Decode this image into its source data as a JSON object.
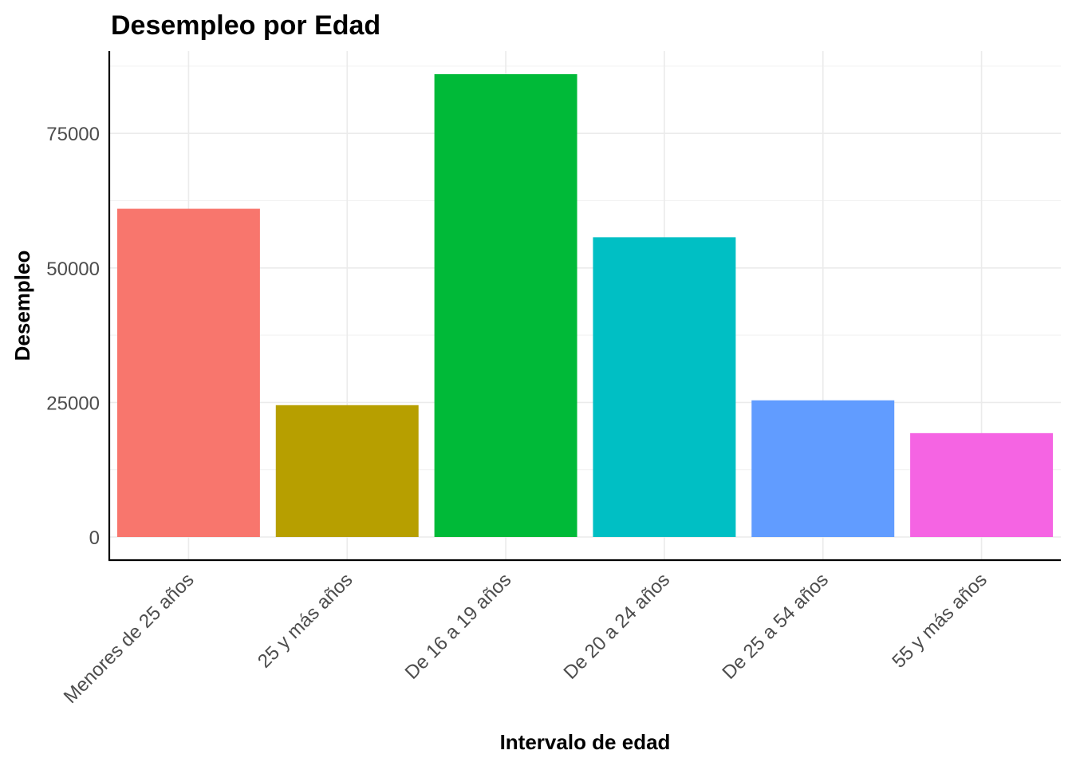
{
  "chart_data": {
    "type": "bar",
    "title": "Desempleo por Edad",
    "xlabel": "Intervalo de edad",
    "ylabel": "Desempleo",
    "categories": [
      "Menores de 25 años",
      "25 y más años",
      "De 16 a 19 años",
      "De 20 a 24 años",
      "De 25 a 54 años",
      "55 y más años"
    ],
    "values": [
      61000,
      24500,
      86000,
      55700,
      25400,
      19300
    ],
    "colors": [
      "#F8766D",
      "#B79F00",
      "#00BA38",
      "#00BFC4",
      "#619CFF",
      "#F564E3"
    ],
    "yticks": [
      0,
      25000,
      50000,
      75000
    ],
    "ylim": [
      -4300,
      90300
    ],
    "grid": true,
    "legend": "none"
  }
}
